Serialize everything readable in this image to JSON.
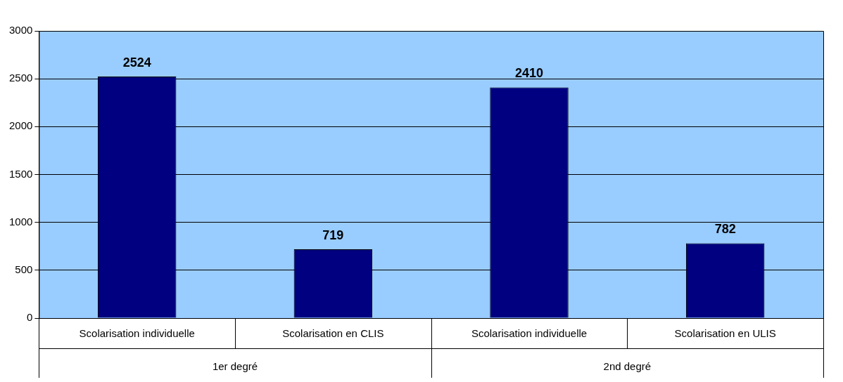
{
  "chart_data": {
    "type": "bar",
    "categories": [
      "Scolarisation individuelle",
      "Scolarisation en CLIS",
      "Scolarisation individuelle",
      "Scolarisation en ULIS"
    ],
    "values": [
      2524,
      719,
      2410,
      782
    ],
    "color": "#000080",
    "ylim": [
      0,
      3000
    ],
    "yticks": [
      0,
      500,
      1000,
      1500,
      2000,
      2500,
      3000
    ],
    "grid": "y",
    "data_labels": true,
    "legend": false,
    "annotations": [
      "1er degré",
      "2nd degré"
    ]
  }
}
